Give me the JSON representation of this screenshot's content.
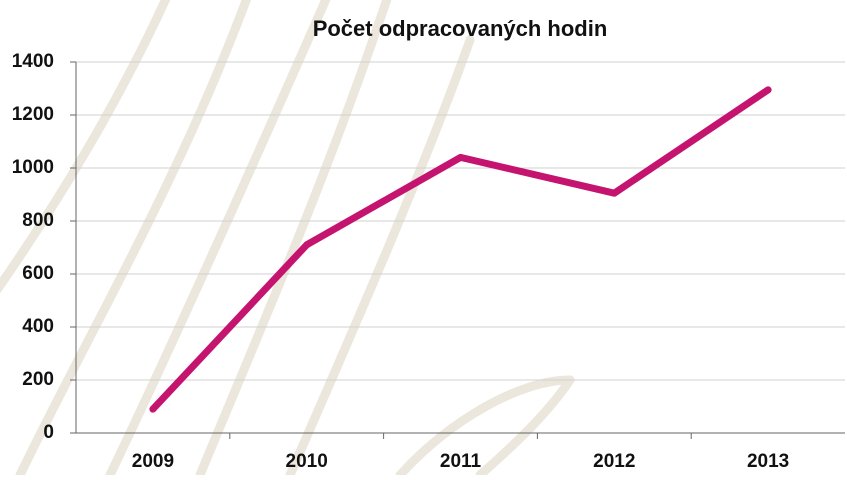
{
  "chart_data": {
    "type": "line",
    "title": "Počet odpracovaných hodin",
    "categories": [
      "2009",
      "2010",
      "2011",
      "2012",
      "2013"
    ],
    "series": [
      {
        "name": "Počet odpracovaných hodin",
        "color": "#c5146f",
        "values": [
          90,
          710,
          1040,
          905,
          1295
        ]
      }
    ],
    "ylim": [
      0,
      1400
    ],
    "yticks": [
      0,
      200,
      400,
      600,
      800,
      1000,
      1200,
      1400
    ],
    "grid": true
  }
}
